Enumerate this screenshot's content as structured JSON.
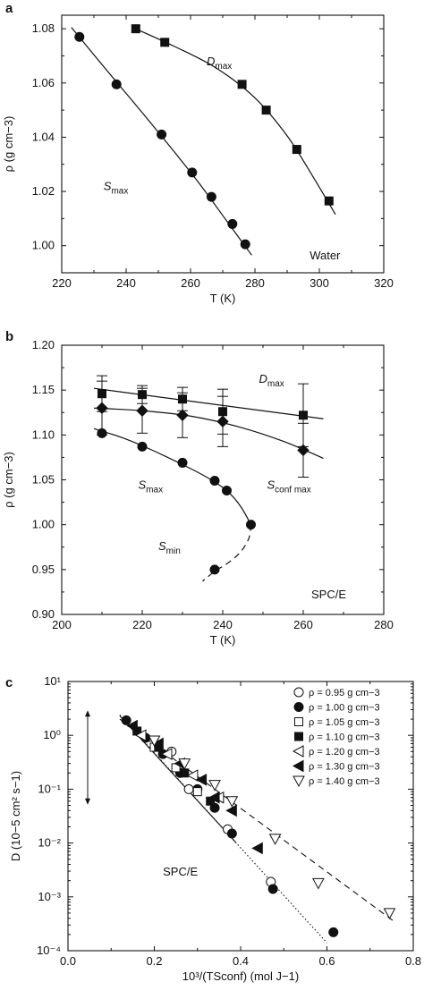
{
  "chart_data": [
    {
      "panel_label": "a",
      "type": "scatter",
      "xlabel": "T (K)",
      "ylabel": "ρ (g cm−3)",
      "xlim": [
        220,
        320
      ],
      "ylim": [
        0.99,
        1.085
      ],
      "xticks": [
        "220",
        "240",
        "260",
        "280",
        "300",
        "320"
      ],
      "yticks": [
        "1.00",
        "1.02",
        "1.04",
        "1.06",
        "1.08"
      ],
      "series": [
        {
          "key": "smax",
          "marker": "circle",
          "x": [
            225.5,
            237,
            251,
            260.5,
            266.5,
            273,
            277
          ],
          "y": [
            1.077,
            1.0595,
            1.041,
            1.027,
            1.018,
            1.008,
            1.0005
          ],
          "curve_x": [
            223,
            232,
            244,
            254,
            263,
            271,
            279
          ],
          "curve_y": [
            1.0805,
            1.0675,
            1.0505,
            1.036,
            1.0225,
            1.0095,
            0.9965
          ]
        },
        {
          "key": "dmax",
          "marker": "square",
          "x": [
            243,
            252,
            276,
            283.5,
            293,
            303
          ],
          "y": [
            1.08,
            1.075,
            1.0595,
            1.05,
            1.0355,
            1.0165
          ],
          "curve_x": [
            242,
            255,
            268,
            280,
            290,
            298,
            305
          ],
          "curve_y": [
            1.0805,
            1.0735,
            1.0655,
            1.0545,
            1.0405,
            1.0255,
            1.0115
          ]
        }
      ],
      "annotations": [
        {
          "key": "dmax_label",
          "base": "D",
          "sub": "max",
          "x": 265,
          "y": 1.0665
        },
        {
          "key": "smax_label",
          "base": "S",
          "sub": "max",
          "x": 233,
          "y": 1.0205
        },
        {
          "key": "water_label",
          "text": "Water",
          "x": 297,
          "y": 0.995
        }
      ]
    },
    {
      "panel_label": "b",
      "type": "scatter",
      "xlabel": "T (K)",
      "ylabel": "ρ (g cm−3)",
      "xlim": [
        200,
        280
      ],
      "ylim": [
        0.9,
        1.2
      ],
      "xticks": [
        "200",
        "220",
        "240",
        "260",
        "280"
      ],
      "yticks": [
        "0.90",
        "0.95",
        "1.00",
        "1.05",
        "1.10",
        "1.15",
        "1.20"
      ],
      "series": [
        {
          "key": "dmax",
          "marker": "square",
          "x": [
            210,
            220,
            230,
            240,
            260
          ],
          "y": [
            1.146,
            1.145,
            1.14,
            1.126,
            1.122
          ],
          "err": [
            0.02,
            0.01,
            0.013,
            0.025,
            0.035
          ],
          "curve_x": [
            208,
            265
          ],
          "curve_y": [
            1.152,
            1.118
          ]
        },
        {
          "key": "sconf",
          "marker": "diamond",
          "x": [
            210,
            220,
            230,
            240,
            260
          ],
          "y": [
            1.13,
            1.127,
            1.122,
            1.115,
            1.083
          ],
          "err": [
            0.03,
            0.025,
            0.025,
            0.028,
            0.03
          ],
          "curve_x": [
            208,
            220,
            232,
            244,
            255,
            265
          ],
          "curve_y": [
            1.13,
            1.127,
            1.121,
            1.109,
            1.093,
            1.074
          ]
        },
        {
          "key": "smax",
          "marker": "circle",
          "x": [
            210,
            220,
            230,
            238,
            241
          ],
          "y": [
            1.102,
            1.087,
            1.069,
            1.049,
            1.038
          ],
          "curve_x": [
            208,
            215,
            222,
            230,
            236,
            241,
            244.5,
            247
          ],
          "curve_y": [
            1.107,
            1.097,
            1.084,
            1.067,
            1.053,
            1.038,
            1.02,
            1.0
          ]
        },
        {
          "key": "smin",
          "marker": "circle",
          "x": [
            247,
            238
          ],
          "y": [
            1.0,
            0.95
          ],
          "dashed": true,
          "curve_x": [
            247,
            246.5,
            244.5,
            241.5,
            238,
            235
          ],
          "curve_y": [
            1.0,
            0.985,
            0.97,
            0.958,
            0.948,
            0.937
          ]
        }
      ],
      "annotations": [
        {
          "key": "dmax_label",
          "base": "D",
          "sub": "max",
          "x": 249,
          "y": 1.158
        },
        {
          "key": "sconf_label",
          "base": "S",
          "sub": "conf max",
          "x": 251,
          "y": 1.04
        },
        {
          "key": "smax_label",
          "base": "S",
          "sub": "max",
          "x": 219,
          "y": 1.04
        },
        {
          "key": "smin_label",
          "base": "S",
          "sub": "min",
          "x": 224,
          "y": 0.972
        },
        {
          "key": "spce_label",
          "text": "SPC/E",
          "x": 262,
          "y": 0.918
        }
      ]
    },
    {
      "panel_label": "c",
      "type": "scatter",
      "xlabel": "10³/(TSconf) (mol J−1)",
      "ylabel": "D (10−5 cm² s−1)",
      "xscale": "log-y",
      "xlim": [
        0.0,
        0.8
      ],
      "ylim": [
        0.0001,
        10
      ],
      "xticks": [
        "0.0",
        "0.2",
        "0.4",
        "0.6",
        "0.8"
      ],
      "yticks": [
        "10⁻⁴",
        "10⁻³",
        "10⁻²",
        "10⁻¹",
        "10⁰",
        "10¹"
      ],
      "series": [
        {
          "key": "r095",
          "name": "ρ = 0.95 g cm−3",
          "marker": "circle",
          "filled": false,
          "x": [
            0.24,
            0.28,
            0.37,
            0.47
          ],
          "y": [
            0.5,
            0.1,
            0.018,
            0.0019
          ]
        },
        {
          "key": "r100",
          "name": "ρ = 1.00 g cm−3",
          "marker": "circle",
          "filled": true,
          "x": [
            0.135,
            0.18,
            0.22,
            0.26,
            0.3,
            0.34,
            0.38,
            0.475,
            0.615
          ],
          "y": [
            1.9,
            0.9,
            0.45,
            0.2,
            0.1,
            0.045,
            0.015,
            0.0014,
            0.00022
          ]
        },
        {
          "key": "r105",
          "name": "ρ = 1.05 g cm−3",
          "marker": "square",
          "filled": false,
          "x": [
            0.2,
            0.25,
            0.3
          ],
          "y": [
            0.6,
            0.25,
            0.09
          ]
        },
        {
          "key": "r110",
          "name": "ρ = 1.10 g cm−3",
          "marker": "square",
          "filled": true,
          "x": [
            0.16,
            0.21,
            0.27,
            0.33
          ],
          "y": [
            1.2,
            0.6,
            0.2,
            0.06
          ]
        },
        {
          "key": "r120",
          "name": "ρ = 1.20 g cm−3",
          "marker": "triangle-left",
          "filled": false,
          "x": [
            0.17,
            0.23,
            0.29,
            0.35
          ],
          "y": [
            1.0,
            0.45,
            0.18,
            0.07
          ]
        },
        {
          "key": "r130",
          "name": "ρ = 1.30 g cm−3",
          "marker": "triangle-left",
          "filled": true,
          "x": [
            0.15,
            0.21,
            0.26,
            0.31,
            0.34,
            0.38,
            0.44
          ],
          "y": [
            1.5,
            0.7,
            0.3,
            0.15,
            0.07,
            0.04,
            0.008
          ]
        },
        {
          "key": "r140",
          "name": "ρ = 1.40 g cm−3",
          "marker": "triangle-down",
          "filled": false,
          "x": [
            0.2,
            0.27,
            0.34,
            0.38,
            0.48,
            0.58,
            0.745
          ],
          "y": [
            0.8,
            0.3,
            0.12,
            0.06,
            0.012,
            0.0018,
            0.0005
          ]
        }
      ],
      "fit_lines": [
        {
          "key": "solid",
          "style": "solid",
          "x": [
            0.12,
            0.39
          ],
          "y": [
            2.3,
            0.01
          ]
        },
        {
          "key": "dotted",
          "style": "dotted",
          "x": [
            0.12,
            0.6
          ],
          "y": [
            2.4,
            0.00014
          ]
        },
        {
          "key": "dashed",
          "style": "dashed",
          "x": [
            0.12,
            0.76
          ],
          "y": [
            2.0,
            0.00033
          ]
        }
      ],
      "annotations": [
        {
          "key": "spce_label",
          "text": "SPC/E",
          "x": 0.22,
          "y": 0.0025
        }
      ],
      "arrow": {
        "x": 0.0,
        "y_top": 2.5,
        "y_bottom": 0.06
      }
    }
  ]
}
